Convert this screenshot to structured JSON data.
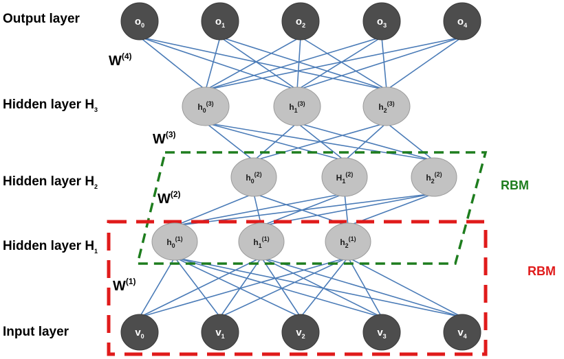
{
  "layers": {
    "output": "Output layer",
    "h3": {
      "base": "Hidden layer H",
      "sub": "3"
    },
    "h2": {
      "base": "Hidden layer H",
      "sub": "2"
    },
    "h1": {
      "base": "Hidden layer H",
      "sub": "1"
    },
    "input": "Input layer"
  },
  "weights": {
    "w4": {
      "base": "W",
      "sup": "(4)"
    },
    "w3": {
      "base": "W",
      "sup": "(3)"
    },
    "w2": {
      "base": "W",
      "sup": "(2)"
    },
    "w1": {
      "base": "W",
      "sup": "(1)"
    }
  },
  "nodes": {
    "output": [
      {
        "base": "o",
        "sub": "0"
      },
      {
        "base": "o",
        "sub": "1"
      },
      {
        "base": "o",
        "sub": "2"
      },
      {
        "base": "o",
        "sub": "3"
      },
      {
        "base": "o",
        "sub": "4"
      }
    ],
    "h3": [
      {
        "base": "h",
        "sub": "0",
        "sup": "(3)"
      },
      {
        "base": "h",
        "sub": "1",
        "sup": "(3)"
      },
      {
        "base": "h",
        "sub": "2",
        "sup": "(3)"
      }
    ],
    "h2": [
      {
        "base": "h",
        "sub": "0",
        "sup": "(2)"
      },
      {
        "base": "H",
        "sub": "1",
        "sup": "(2)"
      },
      {
        "base": "h",
        "sub": "2",
        "sup": "(2)"
      }
    ],
    "h1": [
      {
        "base": "h",
        "sub": "0",
        "sup": "(1)"
      },
      {
        "base": "h",
        "sub": "1",
        "sup": "(1)"
      },
      {
        "base": "h",
        "sub": "2",
        "sup": "(1)"
      }
    ],
    "input": [
      {
        "base": "v",
        "sub": "0"
      },
      {
        "base": "v",
        "sub": "1"
      },
      {
        "base": "v",
        "sub": "2"
      },
      {
        "base": "v",
        "sub": "3"
      },
      {
        "base": "v",
        "sub": "4"
      }
    ]
  },
  "rbm": {
    "upper": {
      "label": "RBM",
      "color": "#1e7d1e"
    },
    "lower": {
      "label": "RBM",
      "color": "#e01b1b"
    }
  },
  "colors": {
    "edge": "#4a7bb7",
    "dark_node": "#4d4d4d",
    "gray_node": "#c2c2c2"
  }
}
